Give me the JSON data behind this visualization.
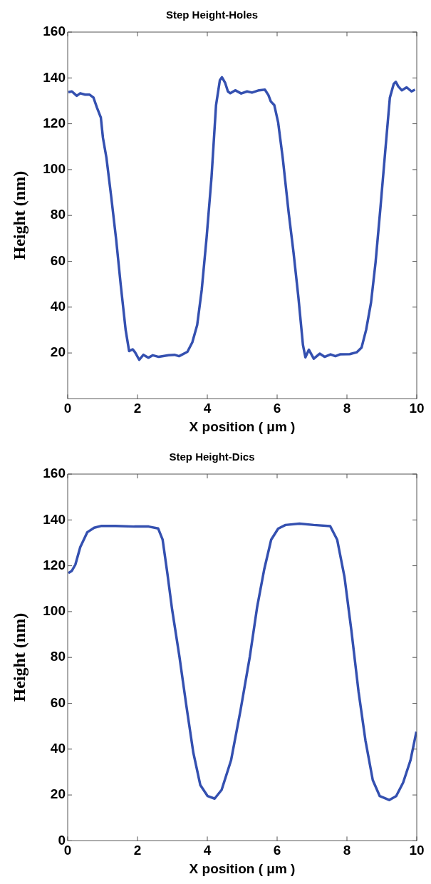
{
  "chart_data": [
    {
      "type": "line",
      "title": "Step Height-Holes",
      "xlabel": "X position ( μm )",
      "ylabel": "Height (nm)",
      "xlim": [
        0,
        10
      ],
      "xticks": [
        0,
        2,
        4,
        6,
        8,
        10
      ],
      "ylim": [
        0,
        160
      ],
      "yticks": [
        20,
        40,
        60,
        80,
        100,
        120,
        140,
        160
      ],
      "marker": "none",
      "x": [
        0.02,
        0.12,
        0.26,
        0.36,
        0.5,
        0.63,
        0.74,
        0.84,
        0.95,
        1.01,
        1.11,
        1.25,
        1.39,
        1.52,
        1.66,
        1.76,
        1.86,
        1.93,
        2.05,
        2.17,
        2.31,
        2.44,
        2.61,
        2.89,
        3.06,
        3.19,
        3.43,
        3.57,
        3.71,
        3.84,
        3.98,
        4.12,
        4.25,
        4.36,
        4.42,
        4.51,
        4.59,
        4.66,
        4.8,
        4.97,
        5.14,
        5.28,
        5.48,
        5.65,
        5.75,
        5.82,
        5.92,
        6.03,
        6.16,
        6.33,
        6.47,
        6.61,
        6.74,
        6.81,
        6.91,
        7.05,
        7.22,
        7.36,
        7.53,
        7.67,
        7.8,
        8.08,
        8.28,
        8.42,
        8.55,
        8.69,
        8.82,
        8.96,
        9.1,
        9.23,
        9.34,
        9.4,
        9.47,
        9.57,
        9.71,
        9.85,
        9.95
      ],
      "series": [
        {
          "color": "#3450b0",
          "values": [
            133.8,
            134.1,
            132.2,
            133.3,
            132.7,
            132.7,
            131.4,
            127,
            122.7,
            113.9,
            105.2,
            87.8,
            69.3,
            49.7,
            30.1,
            20.8,
            21.6,
            20.3,
            17,
            19.2,
            17.9,
            19,
            18.3,
            19,
            19.2,
            18.6,
            20.5,
            24.6,
            32.2,
            47.5,
            70.4,
            96.5,
            128.1,
            139,
            140.3,
            137.9,
            134.1,
            133.3,
            134.6,
            133.2,
            134.1,
            133.6,
            134.6,
            134.9,
            132.5,
            129.7,
            128.1,
            120.5,
            105.2,
            81.3,
            63.8,
            44.2,
            23.5,
            18.1,
            21.4,
            17.5,
            19.7,
            18.3,
            19.4,
            18.6,
            19.4,
            19.5,
            20.3,
            22.4,
            30.1,
            42,
            59.5,
            83.4,
            108.5,
            131.4,
            137.4,
            138.3,
            136.3,
            134.6,
            135.9,
            134.1,
            134.9
          ]
        }
      ]
    },
    {
      "type": "line",
      "title": "Step Height-Dics",
      "xlabel": "X position ( μm )",
      "ylabel": "Height (nm)",
      "xlim": [
        0,
        10
      ],
      "xticks": [
        0,
        2,
        4,
        6,
        8,
        10
      ],
      "ylim": [
        0,
        160
      ],
      "yticks": [
        0,
        20,
        40,
        60,
        80,
        100,
        120,
        140,
        160
      ],
      "marker": "none",
      "x": [
        0.02,
        0.12,
        0.22,
        0.36,
        0.56,
        0.76,
        0.97,
        1.37,
        1.91,
        2.32,
        2.59,
        2.72,
        2.86,
        2.99,
        3.2,
        3.4,
        3.6,
        3.8,
        4.01,
        4.21,
        4.41,
        4.68,
        4.95,
        5.22,
        5.43,
        5.63,
        5.83,
        6.03,
        6.24,
        6.64,
        7.05,
        7.52,
        7.72,
        7.93,
        8.13,
        8.33,
        8.53,
        8.74,
        8.94,
        9.21,
        9.41,
        9.61,
        9.82,
        9.99
      ],
      "series": [
        {
          "color": "#3450b0",
          "values": [
            116.8,
            117.8,
            120.5,
            128.1,
            134.6,
            136.6,
            137.4,
            137.4,
            137.1,
            137.1,
            136.3,
            131.4,
            116.2,
            101.1,
            80.5,
            58.9,
            38.4,
            24.3,
            19.5,
            18.4,
            22.2,
            35.1,
            56.8,
            80.5,
            102.2,
            118.4,
            131.4,
            136.2,
            137.8,
            138.4,
            137.8,
            137.3,
            131.4,
            115.1,
            91.4,
            65.4,
            43.8,
            26.5,
            19.5,
            17.8,
            19.5,
            25.4,
            35.1,
            47.6
          ]
        }
      ]
    }
  ]
}
